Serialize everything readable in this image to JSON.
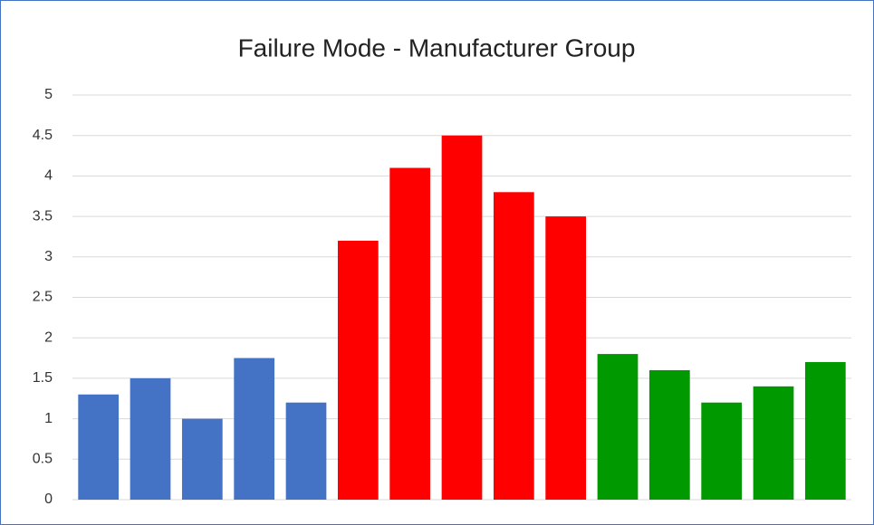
{
  "chart_data": {
    "type": "bar",
    "title": "Failure Mode - Manufacturer Group",
    "categories": [
      null,
      null,
      null,
      null,
      null,
      null,
      null,
      null,
      null,
      null,
      null,
      null,
      null,
      null,
      null
    ],
    "values": [
      1.3,
      1.5,
      1.0,
      1.75,
      1.2,
      3.2,
      4.1,
      4.5,
      3.8,
      3.5,
      1.8,
      1.6,
      1.2,
      1.4,
      1.7
    ],
    "colors": [
      "#4472c4",
      "#4472c4",
      "#4472c4",
      "#4472c4",
      "#4472c4",
      "#ff0000",
      "#ff0000",
      "#ff0000",
      "#ff0000",
      "#ff0000",
      "#009900",
      "#009900",
      "#009900",
      "#009900",
      "#009900"
    ],
    "ylim": [
      0,
      5
    ],
    "yticks": [
      0,
      0.5,
      1,
      1.5,
      2,
      2.5,
      3,
      3.5,
      4,
      4.5,
      5
    ],
    "grid": true
  }
}
